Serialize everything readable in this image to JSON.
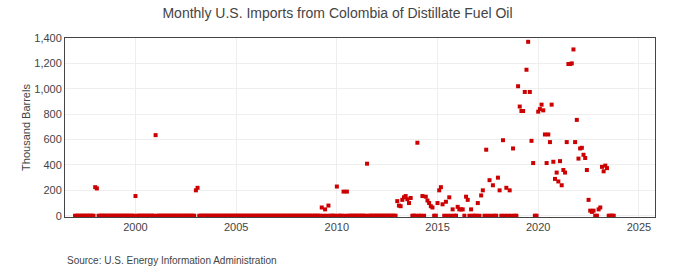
{
  "chart_data": {
    "type": "scatter",
    "title": "Monthly U.S. Imports from Colombia of Distillate Fuel Oil",
    "ylabel": "Thousand Barrels",
    "annotations": [
      "Source: U.S. Energy Information Administration"
    ],
    "color": "#cc0000",
    "marker": "square",
    "grid": true,
    "xlim": [
      1996.5,
      2025.8
    ],
    "ylim": [
      -10,
      1400
    ],
    "xticks": [
      2000,
      2005,
      2010,
      2015,
      2020,
      2025
    ],
    "yticks": [
      0,
      200,
      400,
      600,
      800,
      {
        "value": 1000,
        "label": "1,000"
      },
      {
        "value": 1200,
        "label": "1,200"
      },
      {
        "value": 1400,
        "label": "1,400"
      }
    ],
    "x": [
      1997.0,
      1997.083,
      1997.167,
      1997.25,
      1997.333,
      1997.417,
      1997.5,
      1997.583,
      1997.667,
      1997.75,
      1997.833,
      1997.917,
      1998.0,
      1998.083,
      1998.167,
      1998.25,
      1998.333,
      1998.417,
      1998.5,
      1998.583,
      1998.667,
      1998.75,
      1998.833,
      1998.917,
      1999.0,
      1999.083,
      1999.167,
      1999.25,
      1999.333,
      1999.417,
      1999.5,
      1999.583,
      1999.667,
      1999.75,
      1999.833,
      1999.917,
      2000.0,
      2000.083,
      2000.167,
      2000.25,
      2000.333,
      2000.417,
      2000.5,
      2000.583,
      2000.667,
      2000.75,
      2000.833,
      2000.917,
      2001.0,
      2001.083,
      2001.167,
      2001.25,
      2001.333,
      2001.417,
      2001.5,
      2001.583,
      2001.667,
      2001.75,
      2001.833,
      2001.917,
      2002.0,
      2002.083,
      2002.167,
      2002.25,
      2002.333,
      2002.417,
      2002.5,
      2002.583,
      2002.667,
      2002.75,
      2002.833,
      2002.917,
      2003.0,
      2003.083,
      2003.167,
      2003.25,
      2003.333,
      2003.417,
      2003.5,
      2003.583,
      2003.667,
      2003.75,
      2003.833,
      2003.917,
      2004.0,
      2004.083,
      2004.167,
      2004.25,
      2004.333,
      2004.417,
      2004.5,
      2004.583,
      2004.667,
      2004.75,
      2004.833,
      2004.917,
      2005.0,
      2005.083,
      2005.167,
      2005.25,
      2005.333,
      2005.417,
      2005.5,
      2005.583,
      2005.667,
      2005.75,
      2005.833,
      2005.917,
      2006.0,
      2006.083,
      2006.167,
      2006.25,
      2006.333,
      2006.417,
      2006.5,
      2006.583,
      2006.667,
      2006.75,
      2006.833,
      2006.917,
      2007.0,
      2007.083,
      2007.167,
      2007.25,
      2007.333,
      2007.417,
      2007.5,
      2007.583,
      2007.667,
      2007.75,
      2007.833,
      2007.917,
      2008.0,
      2008.083,
      2008.167,
      2008.25,
      2008.333,
      2008.417,
      2008.5,
      2008.583,
      2008.667,
      2008.75,
      2008.833,
      2008.917,
      2009.0,
      2009.083,
      2009.167,
      2009.25,
      2009.333,
      2009.417,
      2009.5,
      2009.583,
      2009.667,
      2009.75,
      2009.833,
      2009.917,
      2010.0,
      2010.083,
      2010.167,
      2010.25,
      2010.333,
      2010.417,
      2010.5,
      2010.583,
      2010.667,
      2010.75,
      2010.833,
      2010.917,
      2011.0,
      2011.083,
      2011.167,
      2011.25,
      2011.333,
      2011.417,
      2011.5,
      2011.583,
      2011.667,
      2011.75,
      2011.833,
      2011.917,
      2012.0,
      2012.083,
      2012.167,
      2012.25,
      2012.333,
      2012.417,
      2012.5,
      2012.583,
      2012.667,
      2012.75,
      2012.833,
      2012.917,
      2013.0,
      2013.083,
      2013.167,
      2013.25,
      2013.333,
      2013.417,
      2013.5,
      2013.583,
      2013.667,
      2013.75,
      2013.833,
      2013.917,
      2014.0,
      2014.083,
      2014.167,
      2014.25,
      2014.333,
      2014.417,
      2014.5,
      2014.583,
      2014.667,
      2014.75,
      2014.833,
      2014.917,
      2015.0,
      2015.083,
      2015.167,
      2015.25,
      2015.333,
      2015.417,
      2015.5,
      2015.583,
      2015.667,
      2015.75,
      2015.833,
      2015.917,
      2016.0,
      2016.083,
      2016.167,
      2016.25,
      2016.333,
      2016.417,
      2016.5,
      2016.583,
      2016.667,
      2016.75,
      2016.833,
      2016.917,
      2017.0,
      2017.083,
      2017.167,
      2017.25,
      2017.333,
      2017.417,
      2017.5,
      2017.583,
      2017.667,
      2017.75,
      2017.833,
      2017.917,
      2018.0,
      2018.083,
      2018.167,
      2018.25,
      2018.333,
      2018.417,
      2018.5,
      2018.583,
      2018.667,
      2018.75,
      2018.833,
      2018.917,
      2019.0,
      2019.083,
      2019.167,
      2019.25,
      2019.333,
      2019.417,
      2019.5,
      2019.583,
      2019.667,
      2019.75,
      2019.833,
      2019.917,
      2020.0,
      2020.083,
      2020.167,
      2020.25,
      2020.333,
      2020.417,
      2020.5,
      2020.583,
      2020.667,
      2020.75,
      2020.833,
      2020.917,
      2021.0,
      2021.083,
      2021.167,
      2021.25,
      2021.333,
      2021.417,
      2021.5,
      2021.583,
      2021.667,
      2021.75,
      2021.833,
      2021.917,
      2022.0,
      2022.083,
      2022.167,
      2022.25,
      2022.333,
      2022.417,
      2022.5,
      2022.583,
      2022.667,
      2022.75,
      2022.833,
      2022.917,
      2023.0,
      2023.083,
      2023.167,
      2023.25,
      2023.333,
      2023.417,
      2023.5,
      2023.583,
      2023.667,
      2023.75
    ],
    "values": [
      0,
      0,
      0,
      0,
      0,
      0,
      0,
      0,
      0,
      0,
      0,
      0,
      225,
      215,
      0,
      0,
      0,
      0,
      0,
      0,
      0,
      0,
      0,
      0,
      0,
      0,
      0,
      0,
      0,
      0,
      0,
      0,
      0,
      0,
      0,
      0,
      155,
      0,
      0,
      0,
      0,
      0,
      0,
      0,
      0,
      0,
      0,
      0,
      635,
      0,
      0,
      0,
      0,
      0,
      0,
      0,
      0,
      0,
      0,
      0,
      0,
      0,
      0,
      0,
      0,
      0,
      0,
      0,
      0,
      0,
      0,
      0,
      200,
      220,
      0,
      0,
      0,
      0,
      0,
      0,
      0,
      0,
      0,
      0,
      0,
      0,
      0,
      0,
      0,
      0,
      0,
      0,
      0,
      0,
      0,
      0,
      0,
      0,
      0,
      0,
      0,
      0,
      0,
      0,
      0,
      0,
      0,
      0,
      0,
      0,
      0,
      0,
      0,
      0,
      0,
      0,
      0,
      0,
      0,
      0,
      0,
      0,
      0,
      0,
      0,
      0,
      0,
      0,
      0,
      0,
      0,
      0,
      0,
      0,
      0,
      0,
      0,
      0,
      0,
      0,
      0,
      0,
      0,
      0,
      0,
      0,
      0,
      65,
      0,
      50,
      0,
      80,
      0,
      0,
      0,
      0,
      230,
      0,
      0,
      0,
      190,
      0,
      190,
      0,
      0,
      0,
      0,
      0,
      0,
      0,
      0,
      0,
      0,
      0,
      410,
      0,
      0,
      0,
      0,
      0,
      0,
      0,
      0,
      0,
      0,
      0,
      0,
      0,
      0,
      0,
      0,
      0,
      115,
      80,
      75,
      125,
      145,
      155,
      130,
      100,
      140,
      0,
      0,
      0,
      575,
      0,
      0,
      155,
      0,
      150,
      120,
      100,
      75,
      65,
      0,
      0,
      100,
      200,
      225,
      90,
      0,
      110,
      0,
      145,
      0,
      50,
      0,
      0,
      70,
      50,
      50,
      50,
      0,
      150,
      125,
      0,
      50,
      0,
      0,
      0,
      100,
      0,
      160,
      200,
      0,
      520,
      0,
      280,
      0,
      240,
      0,
      0,
      300,
      200,
      0,
      595,
      0,
      220,
      0,
      200,
      0,
      530,
      0,
      0,
      1020,
      860,
      825,
      825,
      975,
      1150,
      1370,
      975,
      590,
      415,
      0,
      0,
      820,
      840,
      875,
      830,
      640,
      415,
      640,
      580,
      875,
      425,
      290,
      340,
      270,
      430,
      240,
      360,
      340,
      580,
      1195,
      1195,
      1200,
      1310,
      580,
      755,
      450,
      530,
      535,
      480,
      455,
      360,
      125,
      40,
      30,
      40,
      0,
      0,
      50,
      65,
      385,
      350,
      395,
      375,
      0,
      0,
      0,
      0
    ]
  }
}
